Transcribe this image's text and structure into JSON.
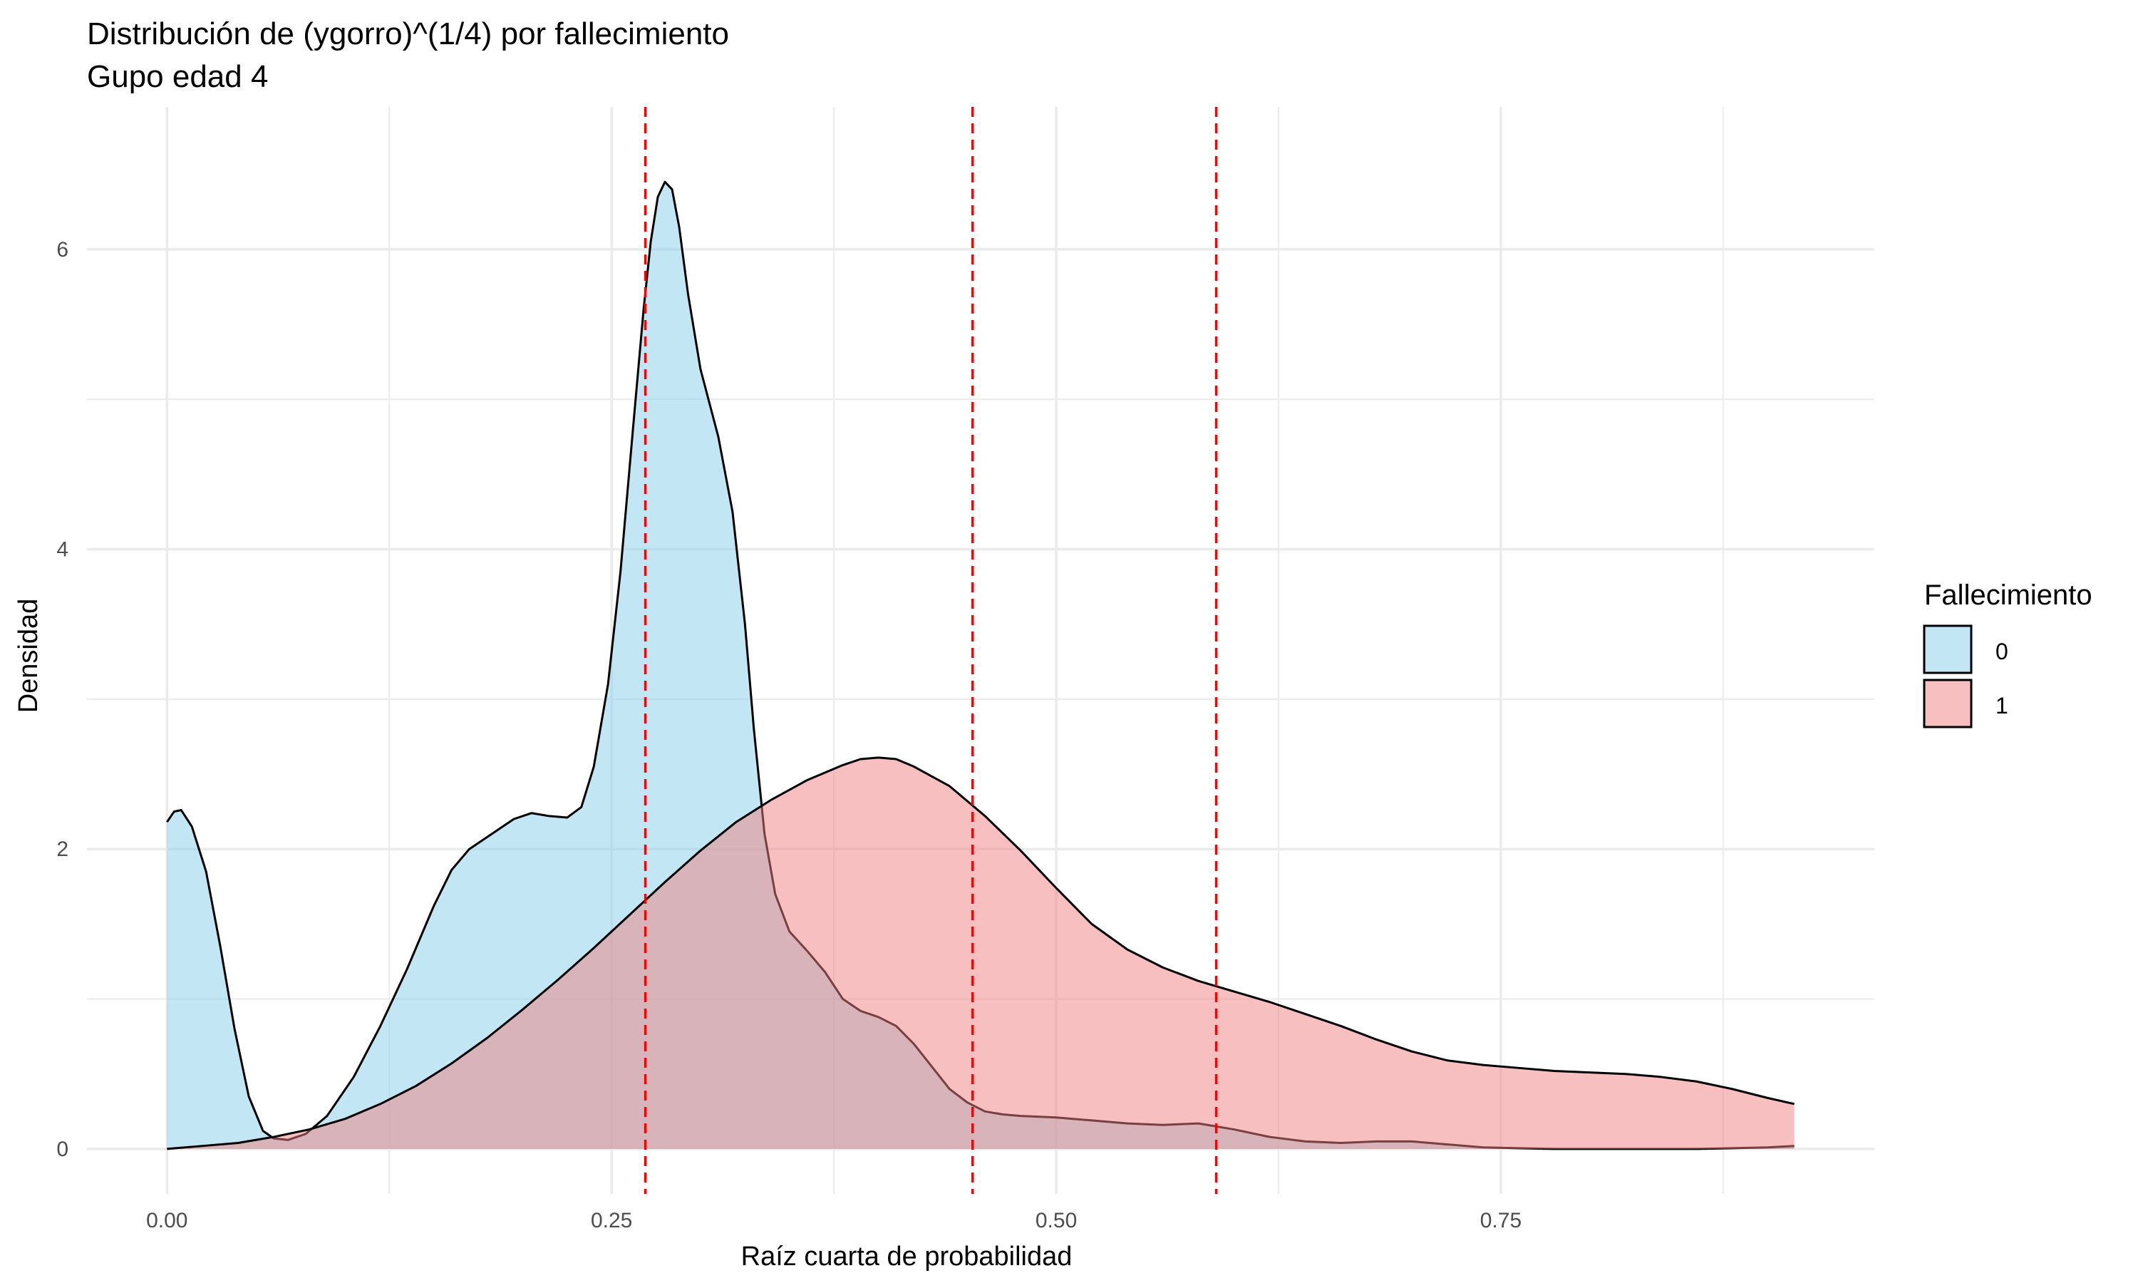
{
  "chart_data": {
    "type": "area",
    "title": "Distribución de (ygorro)^(1/4) por fallecimiento",
    "subtitle": "Gupo edad 4",
    "xlabel": "Raíz cuarta de probabilidad",
    "ylabel": "Densidad",
    "xlim": [
      -0.045,
      0.96
    ],
    "ylim": [
      -0.3,
      6.95
    ],
    "x_major_ticks": [
      0.0,
      0.25,
      0.5,
      0.75
    ],
    "x_tick_labels": [
      "0.00",
      "0.25",
      "0.50",
      "0.75"
    ],
    "x_minor_gridlines": [
      0.125,
      0.375,
      0.625,
      0.875
    ],
    "y_major_ticks": [
      0,
      2,
      4,
      6
    ],
    "y_tick_labels": [
      "0",
      "2",
      "4",
      "6"
    ],
    "y_minor_gridlines": [
      1,
      3,
      5
    ],
    "grid": true,
    "legend": {
      "title": "Fallecimiento",
      "position": "right",
      "entries": [
        {
          "label": "0",
          "color": "#87CEEB"
        },
        {
          "label": "1",
          "color": "#F08080"
        }
      ]
    },
    "vlines": {
      "color": "#FF0000",
      "style": "dashed",
      "x": [
        0.269,
        0.453,
        0.59
      ]
    },
    "series": [
      {
        "name": "0",
        "fill": "#87CEEB",
        "fill_opacity": 0.5,
        "points": [
          [
            0.0,
            2.18
          ],
          [
            0.004,
            2.25
          ],
          [
            0.008,
            2.26
          ],
          [
            0.014,
            2.15
          ],
          [
            0.022,
            1.85
          ],
          [
            0.03,
            1.35
          ],
          [
            0.038,
            0.8
          ],
          [
            0.046,
            0.35
          ],
          [
            0.054,
            0.12
          ],
          [
            0.06,
            0.07
          ],
          [
            0.068,
            0.06
          ],
          [
            0.078,
            0.1
          ],
          [
            0.09,
            0.22
          ],
          [
            0.105,
            0.48
          ],
          [
            0.12,
            0.82
          ],
          [
            0.135,
            1.2
          ],
          [
            0.15,
            1.62
          ],
          [
            0.16,
            1.86
          ],
          [
            0.17,
            2.0
          ],
          [
            0.185,
            2.12
          ],
          [
            0.195,
            2.2
          ],
          [
            0.205,
            2.24
          ],
          [
            0.215,
            2.22
          ],
          [
            0.225,
            2.21
          ],
          [
            0.233,
            2.28
          ],
          [
            0.24,
            2.55
          ],
          [
            0.248,
            3.1
          ],
          [
            0.255,
            3.85
          ],
          [
            0.262,
            4.8
          ],
          [
            0.268,
            5.6
          ],
          [
            0.272,
            6.05
          ],
          [
            0.276,
            6.35
          ],
          [
            0.28,
            6.45
          ],
          [
            0.284,
            6.4
          ],
          [
            0.288,
            6.15
          ],
          [
            0.293,
            5.7
          ],
          [
            0.3,
            5.2
          ],
          [
            0.31,
            4.75
          ],
          [
            0.318,
            4.25
          ],
          [
            0.325,
            3.5
          ],
          [
            0.33,
            2.8
          ],
          [
            0.336,
            2.1
          ],
          [
            0.342,
            1.7
          ],
          [
            0.35,
            1.45
          ],
          [
            0.36,
            1.32
          ],
          [
            0.37,
            1.18
          ],
          [
            0.38,
            1.0
          ],
          [
            0.39,
            0.92
          ],
          [
            0.4,
            0.88
          ],
          [
            0.41,
            0.82
          ],
          [
            0.42,
            0.7
          ],
          [
            0.43,
            0.55
          ],
          [
            0.44,
            0.4
          ],
          [
            0.45,
            0.31
          ],
          [
            0.46,
            0.25
          ],
          [
            0.47,
            0.23
          ],
          [
            0.48,
            0.22
          ],
          [
            0.5,
            0.21
          ],
          [
            0.52,
            0.19
          ],
          [
            0.54,
            0.17
          ],
          [
            0.56,
            0.16
          ],
          [
            0.58,
            0.17
          ],
          [
            0.6,
            0.13
          ],
          [
            0.62,
            0.08
          ],
          [
            0.64,
            0.05
          ],
          [
            0.66,
            0.04
          ],
          [
            0.68,
            0.05
          ],
          [
            0.7,
            0.05
          ],
          [
            0.72,
            0.03
          ],
          [
            0.74,
            0.01
          ],
          [
            0.78,
            0.0
          ],
          [
            0.82,
            0.0
          ],
          [
            0.86,
            0.0
          ],
          [
            0.9,
            0.01
          ],
          [
            0.915,
            0.02
          ]
        ]
      },
      {
        "name": "1",
        "fill": "#F08080",
        "fill_opacity": 0.5,
        "points": [
          [
            0.0,
            0.0
          ],
          [
            0.02,
            0.02
          ],
          [
            0.04,
            0.04
          ],
          [
            0.06,
            0.08
          ],
          [
            0.08,
            0.13
          ],
          [
            0.1,
            0.2
          ],
          [
            0.12,
            0.3
          ],
          [
            0.14,
            0.42
          ],
          [
            0.16,
            0.57
          ],
          [
            0.18,
            0.74
          ],
          [
            0.2,
            0.93
          ],
          [
            0.22,
            1.13
          ],
          [
            0.24,
            1.34
          ],
          [
            0.26,
            1.56
          ],
          [
            0.28,
            1.78
          ],
          [
            0.3,
            1.99
          ],
          [
            0.32,
            2.18
          ],
          [
            0.34,
            2.33
          ],
          [
            0.36,
            2.46
          ],
          [
            0.38,
            2.56
          ],
          [
            0.39,
            2.6
          ],
          [
            0.4,
            2.61
          ],
          [
            0.41,
            2.6
          ],
          [
            0.42,
            2.55
          ],
          [
            0.44,
            2.42
          ],
          [
            0.46,
            2.22
          ],
          [
            0.48,
            1.99
          ],
          [
            0.5,
            1.74
          ],
          [
            0.52,
            1.5
          ],
          [
            0.54,
            1.33
          ],
          [
            0.56,
            1.21
          ],
          [
            0.58,
            1.12
          ],
          [
            0.6,
            1.05
          ],
          [
            0.62,
            0.98
          ],
          [
            0.64,
            0.9
          ],
          [
            0.66,
            0.82
          ],
          [
            0.68,
            0.73
          ],
          [
            0.7,
            0.65
          ],
          [
            0.72,
            0.59
          ],
          [
            0.74,
            0.56
          ],
          [
            0.76,
            0.54
          ],
          [
            0.78,
            0.52
          ],
          [
            0.8,
            0.51
          ],
          [
            0.82,
            0.5
          ],
          [
            0.84,
            0.48
          ],
          [
            0.86,
            0.45
          ],
          [
            0.88,
            0.4
          ],
          [
            0.9,
            0.34
          ],
          [
            0.915,
            0.3
          ]
        ]
      }
    ]
  }
}
